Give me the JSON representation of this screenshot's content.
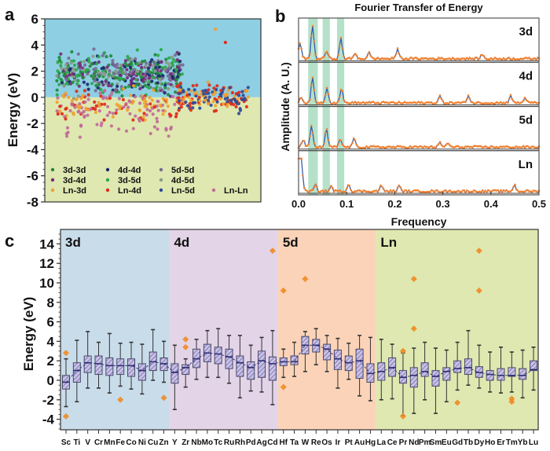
{
  "chart_data": [
    {
      "panel": "a",
      "type": "scatter",
      "title": "",
      "xlabel": "",
      "ylabel": "Energy (eV)",
      "ylim": [
        -8,
        6
      ],
      "yticks": [
        6,
        4,
        2,
        0,
        -2,
        -4,
        -6,
        -8
      ],
      "background_regions": [
        {
          "range": [
            0,
            6
          ],
          "color": "#8ecfe3"
        },
        {
          "range": [
            -8,
            0
          ],
          "color": "#dfe8b0"
        }
      ],
      "legend": {
        "placement": "bottom",
        "entries": [
          {
            "name": "3d-3d",
            "color": "#1f8a3a"
          },
          {
            "name": "4d-4d",
            "color": "#1a2a6c"
          },
          {
            "name": "5d-5d",
            "color": "#7a6a92"
          },
          {
            "name": "3d-4d",
            "color": "#7a2a7a"
          },
          {
            "name": "3d-5d",
            "color": "#2aa84a"
          },
          {
            "name": "4d-5d",
            "color": "#8a9a8a"
          },
          {
            "name": "Ln-3d",
            "color": "#f0a030"
          },
          {
            "name": "Ln-4d",
            "color": "#e02a1a"
          },
          {
            "name": "Ln-5d",
            "color": "#2a4a9a"
          },
          {
            "name": "Ln-Ln",
            "color": "#c06a9a"
          }
        ]
      },
      "note": "Approximately 1000 scattered points; dense cloud between ~-2 and ~5 eV on left half, narrower band ~-3 to 2 eV on right."
    },
    {
      "panel": "b",
      "type": "line",
      "title": "Fourier Transfer of Energy",
      "xlabel": "Frequency",
      "ylabel": "Amplitude (A. U.)",
      "xlim": [
        0.0,
        0.5
      ],
      "xticks": [
        "0.0",
        "0.1",
        "0.2",
        "0.3",
        "0.4",
        "0.5"
      ],
      "highlight_bands": [
        [
          0.02,
          0.04
        ],
        [
          0.05,
          0.065
        ],
        [
          0.08,
          0.095
        ]
      ],
      "band_color": "#a8dcc0",
      "line_color": "#3a5aa8",
      "marker_color": "#f08030",
      "series": [
        {
          "name": "3d",
          "peaks": [
            [
              0.003,
              0.45
            ],
            [
              0.029,
              1.0
            ],
            [
              0.058,
              0.22
            ],
            [
              0.088,
              0.58
            ],
            [
              0.118,
              0.15
            ],
            [
              0.147,
              0.17
            ],
            [
              0.206,
              0.28
            ],
            [
              0.382,
              0.12
            ]
          ]
        },
        {
          "name": "4d",
          "peaks": [
            [
              0.005,
              0.18
            ],
            [
              0.029,
              0.72
            ],
            [
              0.059,
              0.45
            ],
            [
              0.089,
              0.42
            ],
            [
              0.294,
              0.2
            ],
            [
              0.353,
              0.22
            ],
            [
              0.441,
              0.22
            ],
            [
              0.471,
              0.15
            ]
          ]
        },
        {
          "name": "5d",
          "peaks": [
            [
              0.01,
              0.22
            ],
            [
              0.027,
              0.6
            ],
            [
              0.058,
              0.5
            ],
            [
              0.087,
              0.22
            ],
            [
              0.115,
              0.25
            ],
            [
              0.294,
              0.12
            ],
            [
              0.31,
              0.12
            ]
          ]
        },
        {
          "name": "Ln",
          "peaks": [
            [
              0.0,
              0.95
            ],
            [
              0.003,
              0.8
            ],
            [
              0.006,
              0.6
            ],
            [
              0.035,
              0.18
            ],
            [
              0.068,
              0.14
            ],
            [
              0.104,
              0.2
            ],
            [
              0.172,
              0.16
            ],
            [
              0.209,
              0.15
            ],
            [
              0.449,
              0.18
            ]
          ]
        }
      ]
    },
    {
      "panel": "c",
      "type": "box",
      "title": "",
      "xlabel": "",
      "ylabel": "Energy (eV)",
      "ylim": [
        -5,
        15
      ],
      "yticks": [
        14,
        12,
        10,
        8,
        6,
        4,
        2,
        0,
        -2,
        -4
      ],
      "groups": [
        {
          "name": "3d",
          "color": "#c9dcea",
          "start": "Sc",
          "end": "Zn"
        },
        {
          "name": "4d",
          "color": "#e3d4e8",
          "start": "Y",
          "end": "Cd"
        },
        {
          "name": "5d",
          "color": "#fbd3b8",
          "start": "Hf",
          "end": "Hg"
        },
        {
          "name": "Ln",
          "color": "#dfe8b0",
          "start": "La",
          "end": "Lu"
        }
      ],
      "box_fill": "#b8b0d8",
      "outlier_color": "#f08a20",
      "categories": [
        "Sc",
        "Ti",
        "V",
        "Cr",
        "Mn",
        "Fe",
        "Co",
        "Ni",
        "Cu",
        "Zn",
        "Y",
        "Zr",
        "Nb",
        "Mo",
        "Tc",
        "Ru",
        "Rh",
        "Pd",
        "Ag",
        "Cd",
        "Hf",
        "Ta",
        "W",
        "Re",
        "Os",
        "Ir",
        "Pt",
        "Au",
        "Hg",
        "La",
        "Ce",
        "Pr",
        "Nd",
        "Pm",
        "Sm",
        "Eu",
        "Gd",
        "Tb",
        "Dy",
        "Ho",
        "Er",
        "Tm",
        "Yb",
        "Lu"
      ],
      "boxes": [
        {
          "el": "Sc",
          "min": -2.7,
          "q1": -0.9,
          "median": -0.2,
          "q3": 0.5,
          "max": 2.2,
          "outliers": [
            2.8,
            -3.7
          ]
        },
        {
          "el": "Ti",
          "min": -2.2,
          "q1": -0.2,
          "median": 1.0,
          "q3": 1.8,
          "max": 4.1,
          "outliers": []
        },
        {
          "el": "V",
          "min": -0.8,
          "q1": 0.8,
          "median": 1.8,
          "q3": 2.5,
          "max": 5.0,
          "outliers": []
        },
        {
          "el": "Cr",
          "min": -0.8,
          "q1": 0.6,
          "median": 1.7,
          "q3": 2.5,
          "max": 3.9,
          "outliers": []
        },
        {
          "el": "Mn",
          "min": -1.3,
          "q1": 0.5,
          "median": 1.5,
          "q3": 2.3,
          "max": 4.8,
          "outliers": []
        },
        {
          "el": "Fe",
          "min": -0.6,
          "q1": 0.6,
          "median": 1.5,
          "q3": 2.2,
          "max": 3.8,
          "outliers": [
            -2.0
          ]
        },
        {
          "el": "Co",
          "min": -0.9,
          "q1": 0.4,
          "median": 1.5,
          "q3": 2.2,
          "max": 3.9,
          "outliers": []
        },
        {
          "el": "Ni",
          "min": -1.4,
          "q1": 0.0,
          "median": 1.0,
          "q3": 1.7,
          "max": 3.7,
          "outliers": []
        },
        {
          "el": "Cu",
          "min": 0.0,
          "q1": 1.0,
          "median": 1.9,
          "q3": 2.9,
          "max": 5.2,
          "outliers": []
        },
        {
          "el": "Zn",
          "min": -0.2,
          "q1": 1.0,
          "median": 1.7,
          "q3": 2.3,
          "max": 4.0,
          "outliers": [
            -1.8
          ]
        },
        {
          "el": "Y",
          "min": -3.0,
          "q1": -0.3,
          "median": 0.8,
          "q3": 1.7,
          "max": 3.6,
          "outliers": []
        },
        {
          "el": "Zr",
          "min": -0.7,
          "q1": 0.6,
          "median": 1.3,
          "q3": 1.6,
          "max": 2.2,
          "outliers": [
            4.2,
            3.4
          ]
        },
        {
          "el": "Nb",
          "min": 0.1,
          "q1": 1.3,
          "median": 2.2,
          "q3": 3.2,
          "max": 4.2,
          "outliers": []
        },
        {
          "el": "Mo",
          "min": 0.3,
          "q1": 1.9,
          "median": 2.8,
          "q3": 3.7,
          "max": 5.1,
          "outliers": []
        },
        {
          "el": "Tc",
          "min": 0.3,
          "q1": 1.7,
          "median": 2.7,
          "q3": 3.4,
          "max": 5.3,
          "outliers": []
        },
        {
          "el": "Ru",
          "min": -0.3,
          "q1": 1.2,
          "median": 2.4,
          "q3": 3.2,
          "max": 4.6,
          "outliers": []
        },
        {
          "el": "Rh",
          "min": -1.8,
          "q1": 0.4,
          "median": 1.8,
          "q3": 2.5,
          "max": 4.6,
          "outliers": []
        },
        {
          "el": "Pd",
          "min": -1.1,
          "q1": 0.1,
          "median": 1.3,
          "q3": 1.9,
          "max": 3.6,
          "outliers": []
        },
        {
          "el": "Ag",
          "min": -1.2,
          "q1": 0.3,
          "median": 2.0,
          "q3": 3.0,
          "max": 4.4,
          "outliers": []
        },
        {
          "el": "Cd",
          "min": -2.5,
          "q1": 0.0,
          "median": 1.7,
          "q3": 2.4,
          "max": 5.1,
          "outliers": [
            13.3
          ]
        },
        {
          "el": "Hf",
          "min": 0.3,
          "q1": 1.5,
          "median": 1.9,
          "q3": 2.3,
          "max": 3.2,
          "outliers": [
            9.2,
            -0.7
          ]
        },
        {
          "el": "Ta",
          "min": 0.4,
          "q1": 1.6,
          "median": 1.9,
          "q3": 2.5,
          "max": 3.9,
          "outliers": []
        },
        {
          "el": "W",
          "min": 0.9,
          "q1": 2.7,
          "median": 3.6,
          "q3": 4.5,
          "max": 5.0,
          "outliers": [
            10.4
          ]
        },
        {
          "el": "Re",
          "min": 1.6,
          "q1": 2.9,
          "median": 3.6,
          "q3": 4.2,
          "max": 5.3,
          "outliers": []
        },
        {
          "el": "Os",
          "min": 0.9,
          "q1": 2.1,
          "median": 3.2,
          "q3": 3.7,
          "max": 4.6,
          "outliers": []
        },
        {
          "el": "Ir",
          "min": -0.8,
          "q1": 1.1,
          "median": 2.2,
          "q3": 3.1,
          "max": 4.3,
          "outliers": []
        },
        {
          "el": "Pt",
          "min": 0.1,
          "q1": 1.0,
          "median": 1.8,
          "q3": 2.5,
          "max": 3.8,
          "outliers": []
        },
        {
          "el": "Au",
          "min": -1.6,
          "q1": 0.2,
          "median": 2.0,
          "q3": 3.2,
          "max": 4.6,
          "outliers": []
        },
        {
          "el": "Hg",
          "min": -2.1,
          "q1": -0.2,
          "median": 0.7,
          "q3": 1.7,
          "max": 4.4,
          "outliers": []
        },
        {
          "el": "La",
          "min": -2.0,
          "q1": 0.0,
          "median": 0.9,
          "q3": 1.8,
          "max": 4.2,
          "outliers": []
        },
        {
          "el": "Ce",
          "min": -1.9,
          "q1": 0.4,
          "median": 1.3,
          "q3": 2.3,
          "max": 3.7,
          "outliers": []
        },
        {
          "el": "Pr",
          "min": -3.6,
          "q1": -0.3,
          "median": 0.3,
          "q3": 1.0,
          "max": 2.8,
          "outliers": [
            3.0,
            -3.7
          ]
        },
        {
          "el": "Nd",
          "min": -3.4,
          "q1": -0.7,
          "median": 0.5,
          "q3": 1.3,
          "max": 3.3,
          "outliers": [
            10.4,
            5.3
          ]
        },
        {
          "el": "Pm",
          "min": -2.0,
          "q1": 0.4,
          "median": 0.9,
          "q3": 1.8,
          "max": 3.9,
          "outliers": []
        },
        {
          "el": "Sm",
          "min": -3.4,
          "q1": -0.6,
          "median": 0.4,
          "q3": 1.0,
          "max": 3.3,
          "outliers": []
        },
        {
          "el": "Eu",
          "min": -2.2,
          "q1": 0.0,
          "median": 0.9,
          "q3": 1.3,
          "max": 3.1,
          "outliers": []
        },
        {
          "el": "Gd",
          "min": -1.0,
          "q1": 0.8,
          "median": 1.2,
          "q3": 2.0,
          "max": 3.9,
          "outliers": [
            -2.3
          ]
        },
        {
          "el": "Tb",
          "min": -0.5,
          "q1": 0.6,
          "median": 1.3,
          "q3": 2.2,
          "max": 5.1,
          "outliers": []
        },
        {
          "el": "Dy",
          "min": -0.8,
          "q1": 0.3,
          "median": 0.8,
          "q3": 1.4,
          "max": 3.6,
          "outliers": [
            13.3,
            9.2
          ]
        },
        {
          "el": "Ho",
          "min": -1.2,
          "q1": 0.0,
          "median": 0.6,
          "q3": 1.0,
          "max": 2.9,
          "outliers": []
        },
        {
          "el": "Er",
          "min": -1.3,
          "q1": 0.0,
          "median": 0.5,
          "q3": 1.2,
          "max": 3.4,
          "outliers": []
        },
        {
          "el": "Tm",
          "min": -1.2,
          "q1": 0.4,
          "median": 0.5,
          "q3": 1.3,
          "max": 2.9,
          "outliers": [
            -1.9,
            -2.2
          ]
        },
        {
          "el": "Yb",
          "min": -1.8,
          "q1": 0.1,
          "median": 0.5,
          "q3": 1.2,
          "max": 3.1,
          "outliers": []
        },
        {
          "el": "Lu",
          "min": -1.0,
          "q1": 1.0,
          "median": 1.1,
          "q3": 2.0,
          "max": 3.4,
          "outliers": []
        }
      ]
    }
  ],
  "panel_labels": {
    "a": "a",
    "b": "b",
    "c": "c"
  }
}
